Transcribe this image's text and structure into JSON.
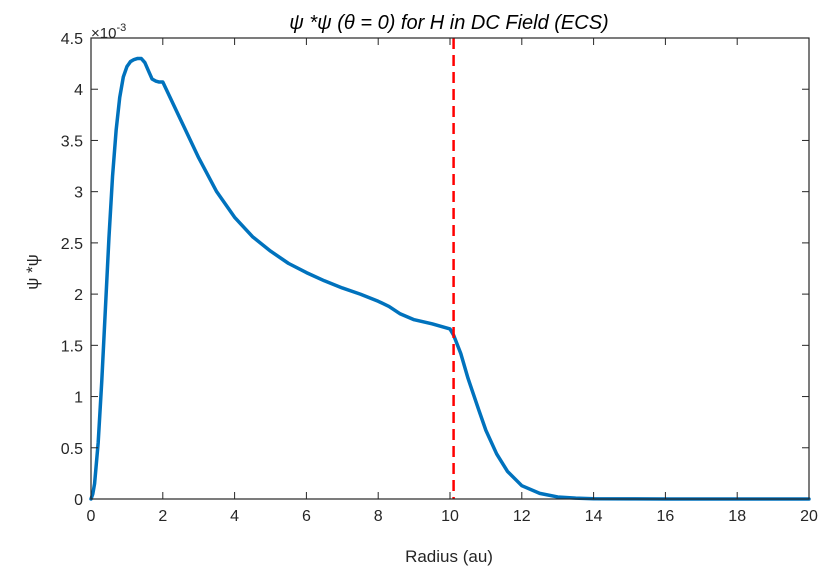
{
  "chart_data": {
    "type": "line",
    "title": "ψ *ψ (θ = 0) for H in DC Field (ECS)",
    "xlabel": "Radius (au)",
    "ylabel": "ψ *ψ",
    "y_exponent_label": "×10",
    "y_exponent_power": "-3",
    "xlim": [
      0,
      20
    ],
    "ylim": [
      0,
      4.5
    ],
    "x_ticks": [
      0,
      2,
      4,
      6,
      8,
      10,
      12,
      14,
      16,
      18,
      20
    ],
    "y_ticks": [
      0,
      0.5,
      1,
      1.5,
      2,
      2.5,
      3,
      3.5,
      4,
      4.5
    ],
    "x_tick_labels": [
      "0",
      "2",
      "4",
      "6",
      "8",
      "10",
      "12",
      "14",
      "16",
      "18",
      "20"
    ],
    "y_tick_labels": [
      "0",
      "0.5",
      "1",
      "1.5",
      "2",
      "2.5",
      "3",
      "3.5",
      "4",
      "4.5"
    ],
    "grid": false,
    "series": [
      {
        "color": "#0072BD",
        "x": [
          0,
          0.05,
          0.1,
          0.2,
          0.3,
          0.4,
          0.5,
          0.6,
          0.7,
          0.8,
          0.9,
          1.0,
          1.1,
          1.2,
          1.3,
          1.4,
          1.5,
          1.6,
          1.7,
          1.8,
          1.9,
          2.0,
          2.5,
          3.0,
          3.5,
          4.0,
          4.5,
          5.0,
          5.5,
          6.0,
          6.5,
          7.0,
          7.5,
          8.0,
          8.3,
          8.6,
          9.0,
          9.5,
          10.0,
          10.1,
          10.3,
          10.5,
          10.8,
          11.0,
          11.3,
          11.6,
          12.0,
          12.5,
          13.0,
          13.5,
          14.0,
          15.0,
          16.0,
          17.0,
          18.0,
          19.0,
          20.0
        ],
        "y": [
          0.0,
          0.05,
          0.15,
          0.55,
          1.15,
          1.85,
          2.55,
          3.15,
          3.6,
          3.92,
          4.12,
          4.22,
          4.27,
          4.29,
          4.3,
          4.3,
          4.26,
          4.18,
          4.1,
          4.08,
          4.07,
          4.07,
          3.7,
          3.33,
          3.0,
          2.75,
          2.56,
          2.42,
          2.3,
          2.21,
          2.13,
          2.06,
          2.0,
          1.93,
          1.88,
          1.81,
          1.75,
          1.71,
          1.66,
          1.6,
          1.42,
          1.18,
          0.87,
          0.67,
          0.44,
          0.27,
          0.13,
          0.055,
          0.02,
          0.008,
          0.003,
          0.001,
          0.0,
          0.0,
          0.0,
          0.0,
          0.0
        ]
      }
    ],
    "annotations": [
      {
        "type": "vline",
        "x": 10.1,
        "color": "#FF0000",
        "style": "dashed"
      }
    ]
  }
}
